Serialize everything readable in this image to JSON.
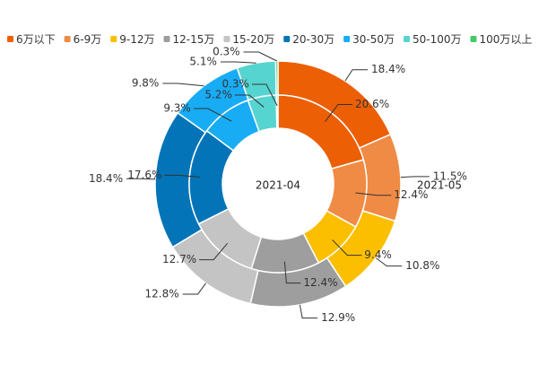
{
  "chart_data": {
    "type": "pie",
    "subtype": "nested-donut",
    "legend_position": "top",
    "categories": [
      "6万以下",
      "6-9万",
      "9-12万",
      "12-15万",
      "15-20万",
      "20-30万",
      "30-50万",
      "50-100万",
      "100万以上"
    ],
    "colors": [
      "#ec5f05",
      "#f08b45",
      "#fcbf00",
      "#9e9e9e",
      "#c4c4c4",
      "#0374b8",
      "#18acf5",
      "#56d4d0",
      "#45c96a"
    ],
    "series": [
      {
        "name": "2021-04",
        "ring": "inner",
        "values": [
          20.6,
          12.4,
          9.4,
          12.4,
          12.7,
          17.6,
          9.3,
          5.2,
          0.3
        ],
        "labels": [
          "20.6%",
          "12.4%",
          "9.4%",
          "12.4%",
          "12.7%",
          "17.6%",
          "9.3%",
          "5.2%",
          "0.3%"
        ]
      },
      {
        "name": "2021-05",
        "ring": "outer",
        "values": [
          18.4,
          11.5,
          10.8,
          12.9,
          12.8,
          18.4,
          9.8,
          5.1,
          0.3
        ],
        "labels": [
          "18.4%",
          "11.5%",
          "10.8%",
          "12.9%",
          "12.8%",
          "18.4%",
          "9.8%",
          "5.1%",
          "0.3%"
        ]
      }
    ]
  }
}
